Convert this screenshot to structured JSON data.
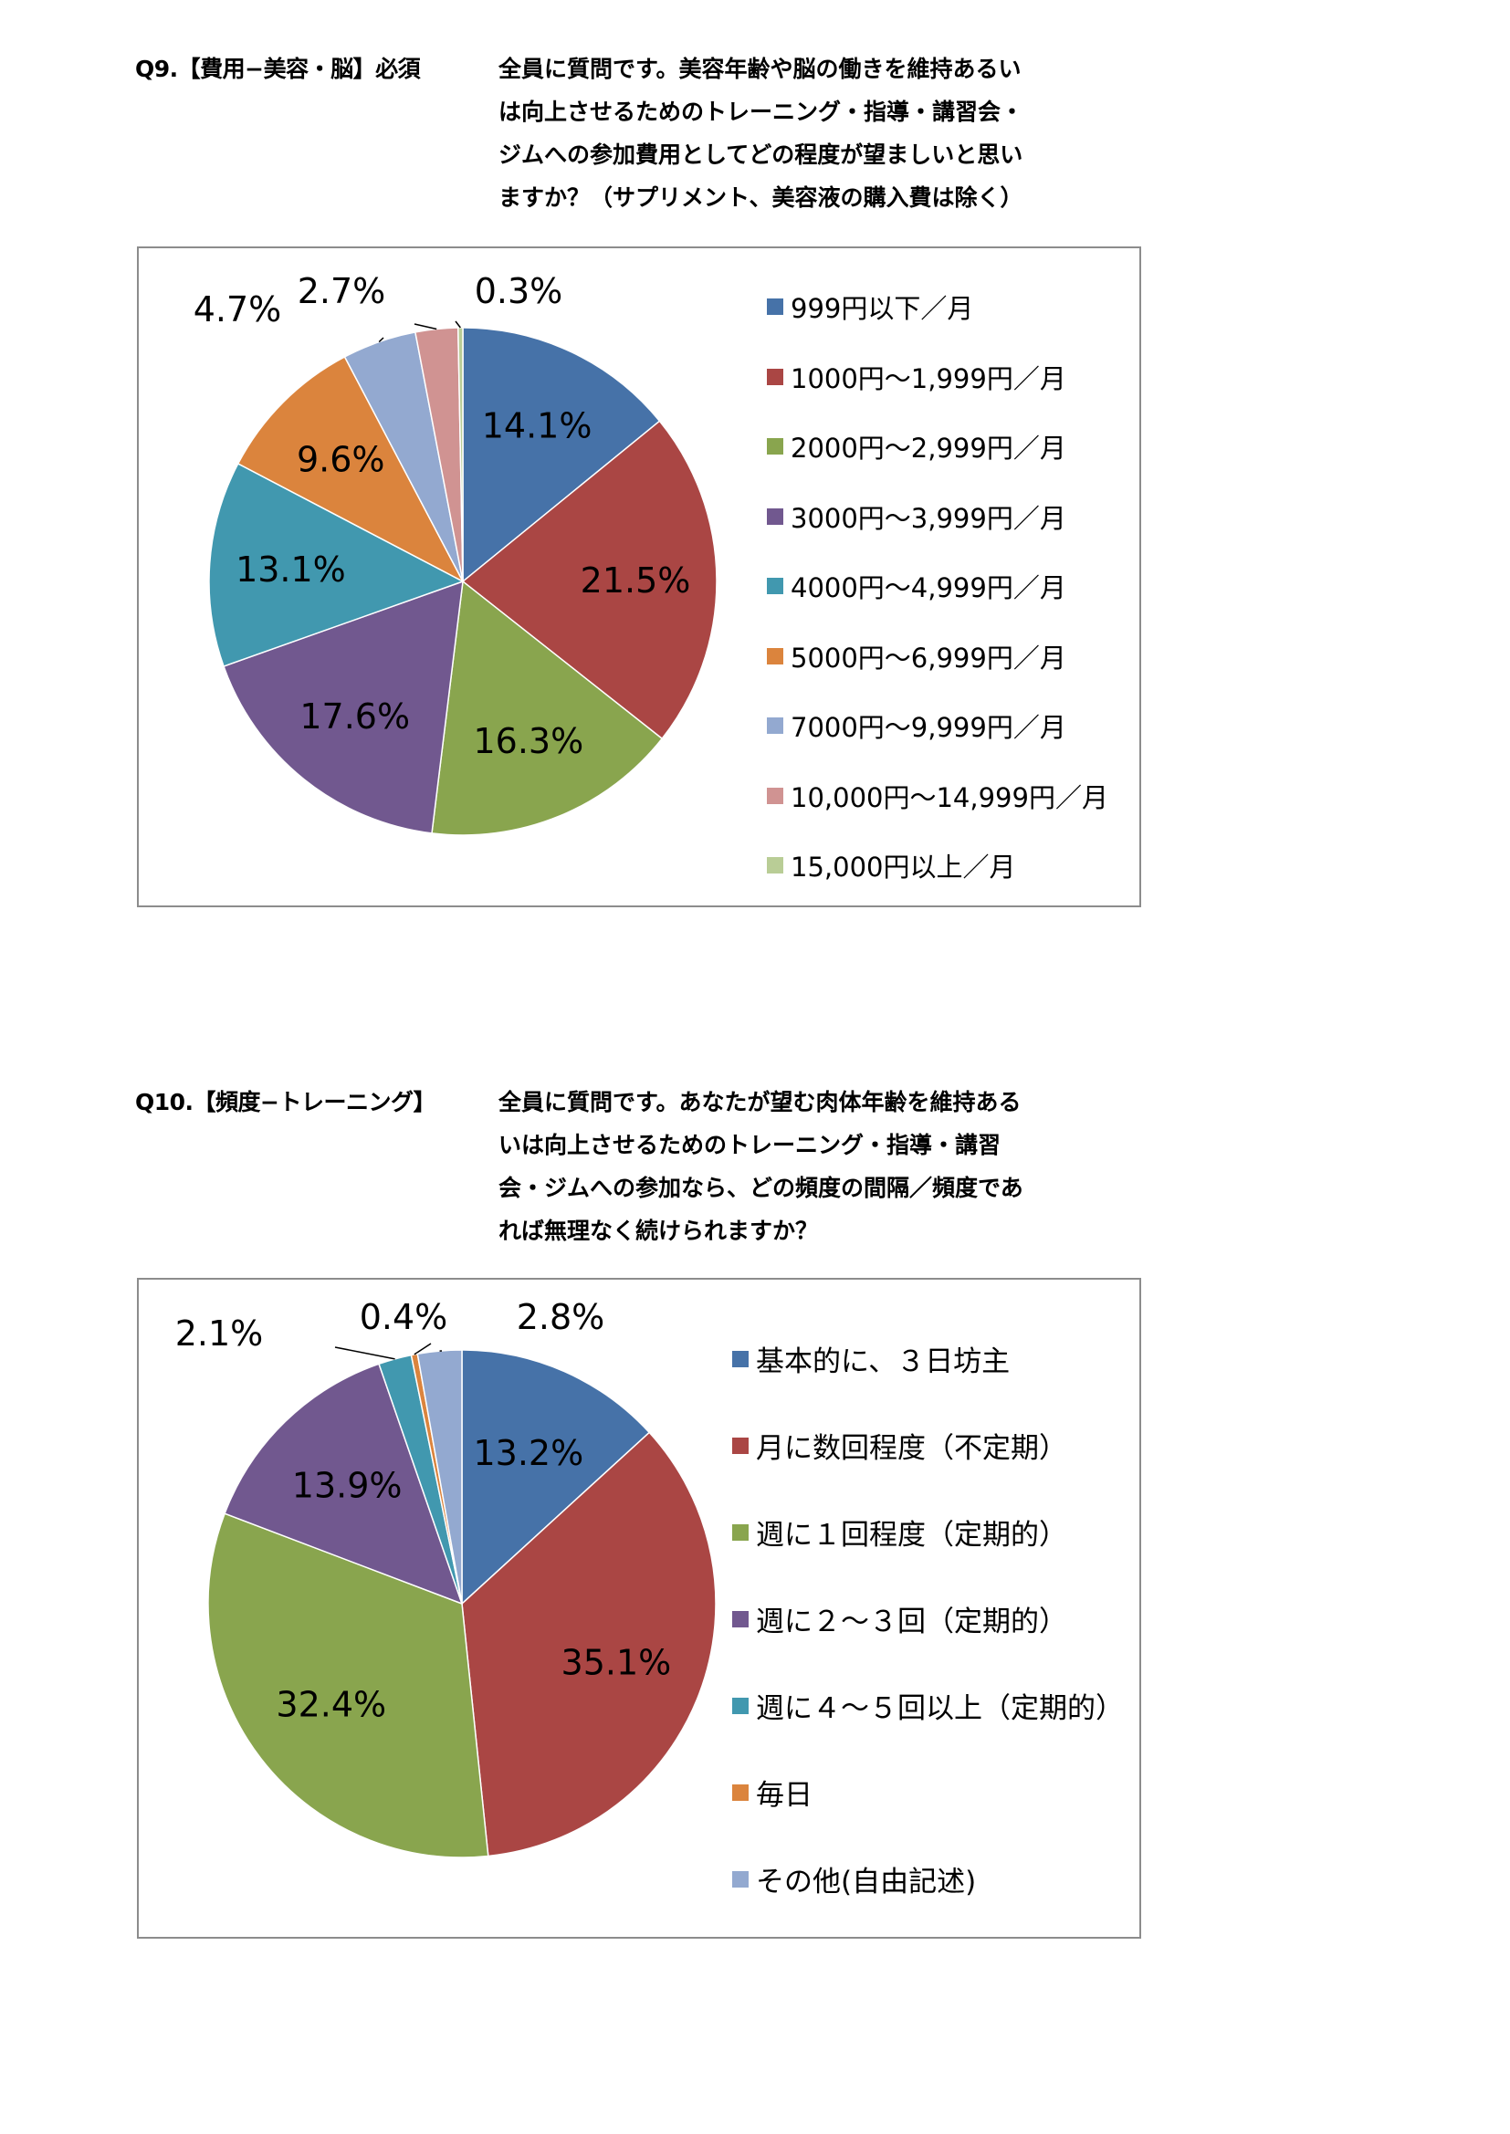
{
  "q9": {
    "label": "Q9.【費用−美容・脳】必須",
    "question_lines": [
      "全員に質問です。美容年齢や脳の働きを維持あるい",
      "は向上させるためのトレーニング・指導・講習会・",
      "ジムへの参加費用としてどの程度が望ましいと思い",
      "ますか？（サプリメント、美容液の購入費は除く）"
    ]
  },
  "q10": {
    "label": "Q10.【頻度−トレーニング】",
    "question_lines": [
      "全員に質問です。あなたが望む肉体年齢を維持ある",
      "いは向上させるためのトレーニング・指導・講習",
      "会・ジムへの参加なら、どの頻度の間隔／頻度であ",
      "れば無理なく続けられますか？"
    ]
  },
  "chart_data": [
    {
      "type": "pie",
      "categories": [
        "999円以下／月",
        "1000円～1,999円／月",
        "2000円～2,999円／月",
        "3000円～3,999円／月",
        "4000円～4,999円／月",
        "5000円～6,999円／月",
        "7000円～9,999円／月",
        "10,000円～14,999円／月",
        "15,000円以上／月"
      ],
      "values": [
        14.1,
        21.5,
        16.3,
        17.6,
        13.1,
        9.6,
        4.7,
        2.7,
        0.3
      ],
      "labels": [
        "14.1%",
        "21.5%",
        "16.3%",
        "17.6%",
        "13.1%",
        "9.6%",
        "4.7%",
        "2.7%",
        "0.3%"
      ],
      "colors": [
        "#4672a8",
        "#aa4644",
        "#89a54e",
        "#71588f",
        "#4198af",
        "#db843d",
        "#93a9d0",
        "#d09392",
        "#b9cd96"
      ],
      "legend": "right"
    },
    {
      "type": "pie",
      "categories": [
        "基本的に、３日坊主",
        "月に数回程度（不定期）",
        "週に１回程度（定期的）",
        "週に２～３回（定期的）",
        "週に４～５回以上（定期的）",
        "毎日",
        "その他(自由記述)"
      ],
      "values": [
        13.2,
        35.1,
        32.4,
        13.9,
        2.1,
        0.4,
        2.8
      ],
      "labels": [
        "13.2%",
        "35.1%",
        "32.4%",
        "13.9%",
        "2.1%",
        "0.4%",
        "2.8%"
      ],
      "colors": [
        "#4672a8",
        "#aa4644",
        "#89a54e",
        "#71588f",
        "#4198af",
        "#db843d",
        "#93a9d0"
      ],
      "legend": "right"
    }
  ]
}
